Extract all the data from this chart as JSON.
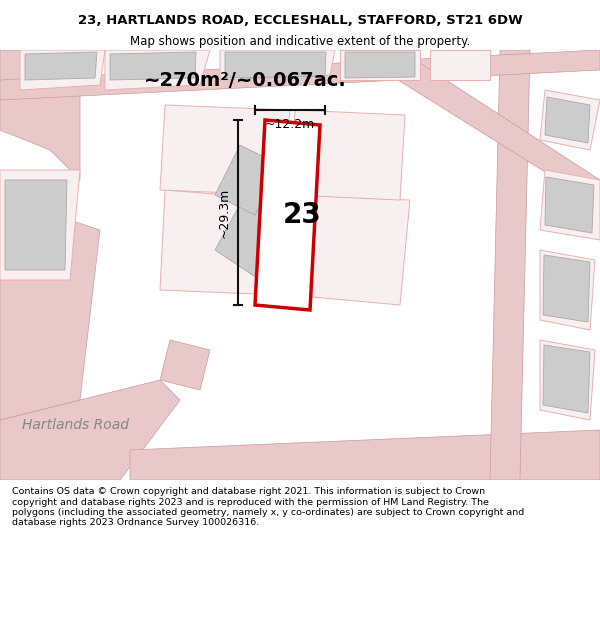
{
  "title_line1": "23, HARTLANDS ROAD, ECCLESHALL, STAFFORD, ST21 6DW",
  "title_line2": "Map shows position and indicative extent of the property.",
  "area_text": "~270m²/~0.067ac.",
  "dim_width": "~12.2m",
  "dim_height": "~29.3m",
  "house_number": "23",
  "road_label": "Hartlands Road",
  "footer_text": "Contains OS data © Crown copyright and database right 2021. This information is subject to Crown copyright and database rights 2023 and is reproduced with the permission of HM Land Registry. The polygons (including the associated geometry, namely x, y co-ordinates) are subject to Crown copyright and database rights 2023 Ordnance Survey 100026316.",
  "bg_color": "#f5f0f0",
  "map_bg": "#ffffff",
  "plot_color_fill": "#ffffff",
  "plot_color_edge": "#cc0000",
  "building_fill": "#cccccc",
  "building_edge": "#aaaaaa",
  "road_color": "#e8c8c8",
  "road_edge": "#cc9999",
  "dim_line_color": "#111111",
  "title_divider_color": "#dddddd"
}
